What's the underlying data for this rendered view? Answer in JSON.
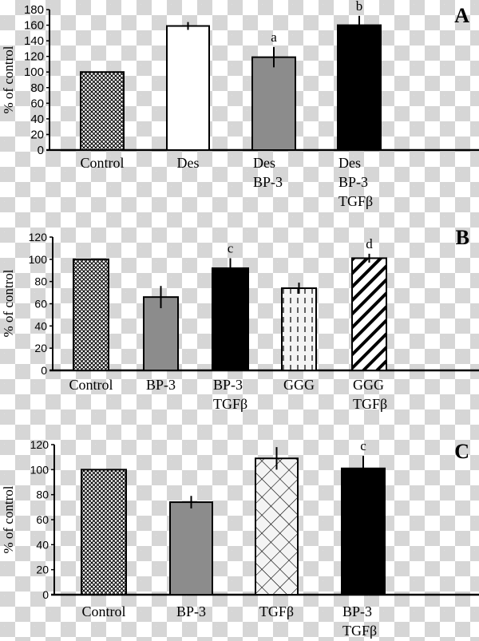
{
  "chart_data": [
    {
      "panel": "A",
      "type": "bar",
      "ylabel": "% of control",
      "ylim": [
        0,
        180
      ],
      "yticks": [
        0,
        20,
        40,
        60,
        80,
        100,
        120,
        140,
        160,
        180
      ],
      "categories": [
        [
          "Control"
        ],
        [
          "Des"
        ],
        [
          "Des",
          "BP-3"
        ],
        [
          "Des",
          "BP-3",
          "TGFβ"
        ]
      ],
      "values": [
        100,
        159,
        119,
        160
      ],
      "errors": [
        0,
        5,
        13,
        12
      ],
      "annotations": [
        "",
        "",
        "a",
        "b"
      ],
      "fills": [
        "crosshatch",
        "white",
        "gray",
        "black"
      ]
    },
    {
      "panel": "B",
      "type": "bar",
      "ylabel": "% of control",
      "ylim": [
        0,
        120
      ],
      "yticks": [
        0,
        20,
        40,
        60,
        80,
        100,
        120
      ],
      "categories": [
        [
          "Control"
        ],
        [
          "BP-3"
        ],
        [
          "BP-3",
          "TGFβ"
        ],
        [
          "GGG"
        ],
        [
          "GGG",
          "TGFβ"
        ]
      ],
      "values": [
        100,
        66,
        92,
        74,
        101
      ],
      "errors": [
        0,
        10,
        9,
        5,
        4
      ],
      "annotations": [
        "",
        "",
        "c",
        "",
        "d"
      ],
      "fills": [
        "crosshatch",
        "gray",
        "black",
        "dashed",
        "diagonal"
      ]
    },
    {
      "panel": "C",
      "type": "bar",
      "ylabel": "% of control",
      "ylim": [
        0,
        120
      ],
      "yticks": [
        0,
        20,
        40,
        60,
        80,
        100,
        120
      ],
      "categories": [
        [
          "Control"
        ],
        [
          "BP-3"
        ],
        [
          "TGFβ"
        ],
        [
          "BP-3",
          "TGFβ"
        ]
      ],
      "values": [
        100,
        74,
        109,
        101
      ],
      "errors": [
        0,
        5,
        9,
        10
      ],
      "annotations": [
        "",
        "",
        "",
        "c"
      ],
      "fills": [
        "crosshatch",
        "gray",
        "lattice",
        "black"
      ]
    }
  ],
  "colors": {
    "gray": "#8c8c8c",
    "black": "#000000",
    "white": "#ffffff"
  }
}
